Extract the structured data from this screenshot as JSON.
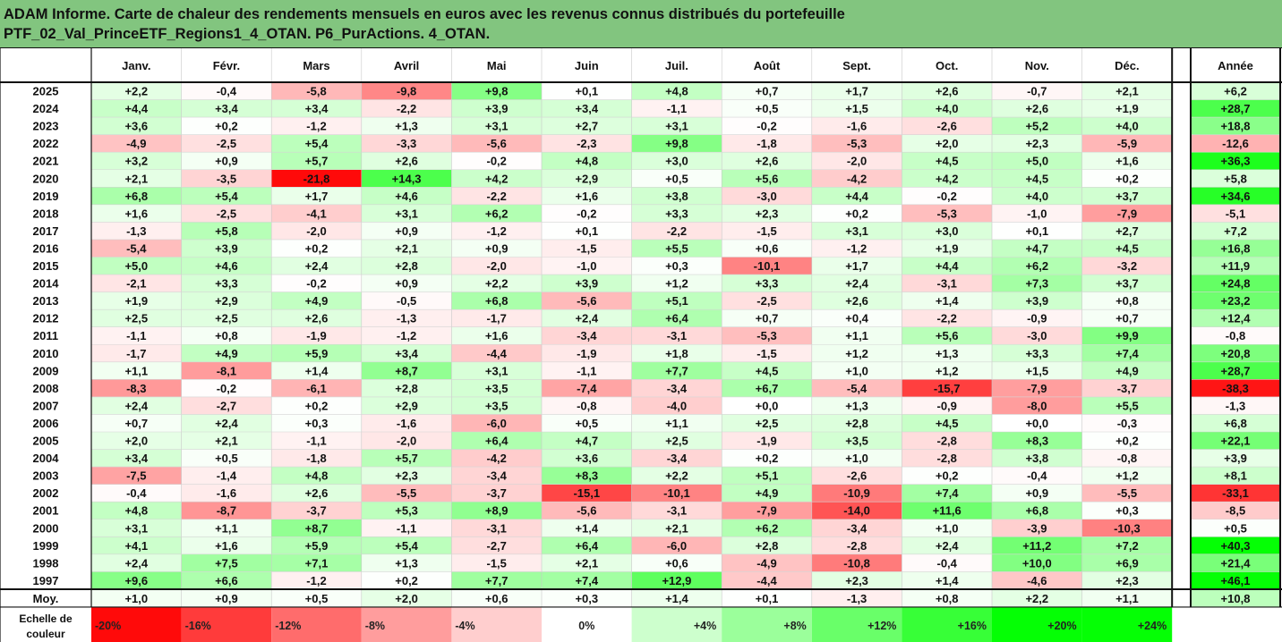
{
  "title": {
    "line1": "ADAM Informe. Carte de chaleur des rendements mensuels en euros avec les revenus connus distribués du portefeuille",
    "line2": "PTF_02_Val_PrinceETF_Regions1_4_OTAN. P6_PurActions. 4_OTAN."
  },
  "colors": {
    "title_bg": "#82c57f",
    "neg_strong": "#ff0000",
    "pos_strong": "#00ff00",
    "neutral": "#ffffff"
  },
  "chart_data": {
    "type": "heatmap",
    "months": [
      "Janv.",
      "Févr.",
      "Mars",
      "Avril",
      "Mai",
      "Juin",
      "Juil.",
      "Août",
      "Sept.",
      "Oct.",
      "Nov.",
      "Déc."
    ],
    "year_header": "Année",
    "avg_label": "Moy.",
    "rows": [
      {
        "year": "2025",
        "values": [
          "+2,2",
          "-0,4",
          "-5,8",
          "-9,8",
          "+9,8",
          "+0,1",
          "+4,8",
          "+0,7",
          "+1,7",
          "+2,6",
          "-0,7",
          "+2,1"
        ],
        "annual": "+6,2"
      },
      {
        "year": "2024",
        "values": [
          "+4,4",
          "+3,4",
          "+3,4",
          "-2,2",
          "+3,9",
          "+3,4",
          "-1,1",
          "+0,5",
          "+1,5",
          "+4,0",
          "+2,6",
          "+1,9"
        ],
        "annual": "+28,7"
      },
      {
        "year": "2023",
        "values": [
          "+3,6",
          "+0,2",
          "-1,2",
          "+1,3",
          "+3,1",
          "+2,7",
          "+3,1",
          "-0,2",
          "-1,6",
          "-2,6",
          "+5,2",
          "+4,0"
        ],
        "annual": "+18,8"
      },
      {
        "year": "2022",
        "values": [
          "-4,9",
          "-2,5",
          "+5,4",
          "-3,3",
          "-5,6",
          "-2,3",
          "+9,8",
          "-1,8",
          "-5,3",
          "+2,0",
          "+2,3",
          "-5,9"
        ],
        "annual": "-12,6"
      },
      {
        "year": "2021",
        "values": [
          "+3,2",
          "+0,9",
          "+5,7",
          "+2,6",
          "-0,2",
          "+4,8",
          "+3,0",
          "+2,6",
          "-2,0",
          "+4,5",
          "+5,0",
          "+1,6"
        ],
        "annual": "+36,3"
      },
      {
        "year": "2020",
        "values": [
          "+2,1",
          "-3,5",
          "-21,8",
          "+14,3",
          "+4,2",
          "+2,9",
          "+0,5",
          "+5,6",
          "-4,2",
          "+4,2",
          "+4,5",
          "+0,2"
        ],
        "annual": "+5,8"
      },
      {
        "year": "2019",
        "values": [
          "+6,8",
          "+5,4",
          "+1,7",
          "+4,6",
          "-2,2",
          "+1,6",
          "+3,8",
          "-3,0",
          "+4,4",
          "-0,2",
          "+4,0",
          "+3,7"
        ],
        "annual": "+34,6"
      },
      {
        "year": "2018",
        "values": [
          "+1,6",
          "-2,5",
          "-4,1",
          "+3,1",
          "+6,2",
          "-0,2",
          "+3,3",
          "+2,3",
          "+0,2",
          "-5,3",
          "-1,0",
          "-7,9"
        ],
        "annual": "-5,1"
      },
      {
        "year": "2017",
        "values": [
          "-1,3",
          "+5,8",
          "-2,0",
          "+0,9",
          "-1,2",
          "+0,1",
          "-2,2",
          "-1,5",
          "+3,1",
          "+3,0",
          "+0,1",
          "+2,7"
        ],
        "annual": "+7,2"
      },
      {
        "year": "2016",
        "values": [
          "-5,4",
          "+3,9",
          "+0,2",
          "+2,1",
          "+0,9",
          "-1,5",
          "+5,5",
          "+0,6",
          "-1,2",
          "+1,9",
          "+4,7",
          "+4,5"
        ],
        "annual": "+16,8"
      },
      {
        "year": "2015",
        "values": [
          "+5,0",
          "+4,6",
          "+2,4",
          "+2,8",
          "-2,0",
          "-1,0",
          "+0,3",
          "-10,1",
          "+1,7",
          "+4,4",
          "+6,2",
          "-3,2"
        ],
        "annual": "+11,9"
      },
      {
        "year": "2014",
        "values": [
          "-2,1",
          "+3,3",
          "-0,2",
          "+0,9",
          "+2,2",
          "+3,9",
          "+1,2",
          "+3,3",
          "+2,4",
          "-3,1",
          "+7,3",
          "+3,7"
        ],
        "annual": "+24,8"
      },
      {
        "year": "2013",
        "values": [
          "+1,9",
          "+2,9",
          "+4,9",
          "-0,5",
          "+6,8",
          "-5,6",
          "+5,1",
          "-2,5",
          "+2,6",
          "+1,4",
          "+3,9",
          "+0,8"
        ],
        "annual": "+23,2"
      },
      {
        "year": "2012",
        "values": [
          "+2,5",
          "+2,5",
          "+2,6",
          "-1,3",
          "-1,7",
          "+2,4",
          "+6,4",
          "+0,7",
          "+0,4",
          "-2,2",
          "-0,9",
          "+0,7"
        ],
        "annual": "+12,4"
      },
      {
        "year": "2011",
        "values": [
          "-1,1",
          "+0,8",
          "-1,9",
          "-1,2",
          "+1,6",
          "-3,4",
          "-3,1",
          "-5,3",
          "+1,1",
          "+5,6",
          "-3,0",
          "+9,9"
        ],
        "annual": "-0,8"
      },
      {
        "year": "2010",
        "values": [
          "-1,7",
          "+4,9",
          "+5,9",
          "+3,4",
          "-4,4",
          "-1,9",
          "+1,8",
          "-1,5",
          "+1,2",
          "+1,3",
          "+3,3",
          "+7,4"
        ],
        "annual": "+20,8"
      },
      {
        "year": "2009",
        "values": [
          "+1,1",
          "-8,1",
          "+1,4",
          "+8,7",
          "+3,1",
          "-1,1",
          "+7,7",
          "+4,5",
          "+1,0",
          "+1,2",
          "+1,5",
          "+4,9"
        ],
        "annual": "+28,7"
      },
      {
        "year": "2008",
        "values": [
          "-8,3",
          "-0,2",
          "-6,1",
          "+2,8",
          "+3,5",
          "-7,4",
          "-3,4",
          "+6,7",
          "-5,4",
          "-15,7",
          "-7,9",
          "-3,7"
        ],
        "annual": "-38,3"
      },
      {
        "year": "2007",
        "values": [
          "+2,4",
          "-2,7",
          "+0,2",
          "+2,9",
          "+3,5",
          "-0,8",
          "-4,0",
          "+0,0",
          "+1,3",
          "-0,9",
          "-8,0",
          "+5,5"
        ],
        "annual": "-1,3"
      },
      {
        "year": "2006",
        "values": [
          "+0,7",
          "+2,4",
          "+0,3",
          "-1,6",
          "-6,0",
          "+0,5",
          "+1,1",
          "+2,5",
          "+2,8",
          "+4,5",
          "+0,0",
          "-0,3"
        ],
        "annual": "+6,8"
      },
      {
        "year": "2005",
        "values": [
          "+2,0",
          "+2,1",
          "-1,1",
          "-2,0",
          "+6,4",
          "+4,7",
          "+2,5",
          "-1,9",
          "+3,5",
          "-2,8",
          "+8,3",
          "+0,2"
        ],
        "annual": "+22,1"
      },
      {
        "year": "2004",
        "values": [
          "+3,4",
          "+0,5",
          "-1,8",
          "+5,7",
          "-4,2",
          "+3,6",
          "-3,4",
          "+0,2",
          "+1,0",
          "-2,8",
          "+3,8",
          "-0,8"
        ],
        "annual": "+3,9"
      },
      {
        "year": "2003",
        "values": [
          "-7,5",
          "-1,4",
          "+4,8",
          "+2,3",
          "-3,4",
          "+8,3",
          "+2,2",
          "+5,1",
          "-2,6",
          "+0,2",
          "-0,4",
          "+1,2"
        ],
        "annual": "+8,1"
      },
      {
        "year": "2002",
        "values": [
          "-0,4",
          "-1,6",
          "+2,6",
          "-5,5",
          "-3,7",
          "-15,1",
          "-10,1",
          "+4,9",
          "-10,9",
          "+7,4",
          "+0,9",
          "-5,5"
        ],
        "annual": "-33,1"
      },
      {
        "year": "2001",
        "values": [
          "+4,8",
          "-8,7",
          "-3,7",
          "+5,3",
          "+8,9",
          "-5,6",
          "-3,1",
          "-7,9",
          "-14,0",
          "+11,6",
          "+6,8",
          "+0,3"
        ],
        "annual": "-8,5"
      },
      {
        "year": "2000",
        "values": [
          "+3,1",
          "+1,1",
          "+8,7",
          "-1,1",
          "-3,1",
          "+1,4",
          "+2,1",
          "+6,2",
          "-3,4",
          "+1,0",
          "-3,9",
          "-10,3"
        ],
        "annual": "+0,5"
      },
      {
        "year": "1999",
        "values": [
          "+4,1",
          "+1,6",
          "+5,9",
          "+5,4",
          "-2,7",
          "+6,4",
          "-6,0",
          "+2,8",
          "-2,8",
          "+2,4",
          "+11,2",
          "+7,2"
        ],
        "annual": "+40,3"
      },
      {
        "year": "1998",
        "values": [
          "+2,4",
          "+7,5",
          "+7,1",
          "+1,3",
          "-1,5",
          "+2,1",
          "+0,6",
          "-4,9",
          "-10,8",
          "-0,4",
          "+10,0",
          "+6,9"
        ],
        "annual": "+21,4"
      },
      {
        "year": "1997",
        "values": [
          "+9,6",
          "+6,6",
          "-1,2",
          "+0,2",
          "+7,7",
          "+7,4",
          "+12,9",
          "-4,4",
          "+2,3",
          "+1,4",
          "-4,6",
          "+2,3"
        ],
        "annual": "+46,1"
      }
    ],
    "average": {
      "values": [
        "+1,0",
        "+0,9",
        "+0,5",
        "+2,0",
        "+0,6",
        "+0,3",
        "+1,4",
        "+0,1",
        "-1,3",
        "+0,8",
        "+2,2",
        "+1,1"
      ],
      "annual": "+10,8"
    },
    "scale": {
      "label_line1": "Echelle de",
      "label_line2": "couleur",
      "steps": [
        "-20%",
        "-16%",
        "-12%",
        "-8%",
        "-4%",
        "0%",
        "+4%",
        "+8%",
        "+12%",
        "+16%",
        "+20%",
        "+24%"
      ]
    }
  }
}
